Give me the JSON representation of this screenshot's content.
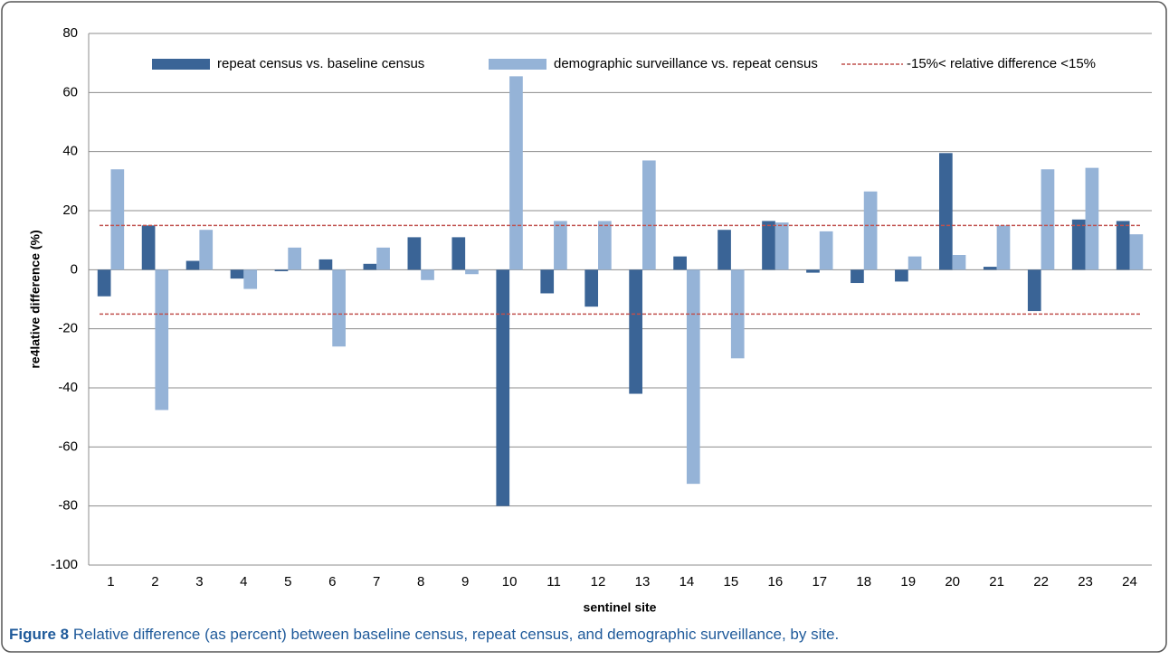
{
  "chart_data": {
    "type": "bar",
    "y_label": "re4lative difference (%)",
    "x_label": "sentinel site",
    "categories": [
      "1",
      "2",
      "3",
      "4",
      "5",
      "6",
      "7",
      "8",
      "9",
      "10",
      "11",
      "12",
      "13",
      "14",
      "15",
      "16",
      "17",
      "18",
      "19",
      "20",
      "21",
      "22",
      "23",
      "24"
    ],
    "series": [
      {
        "name": "repeat census vs. baseline census",
        "color": "#3a6496",
        "values": [
          -9,
          15,
          3,
          -3,
          -0.5,
          3.5,
          2,
          11,
          11,
          -80,
          -8,
          -12.5,
          -42,
          4.5,
          13.5,
          16.5,
          -1,
          -4.5,
          -4,
          39.5,
          1,
          -14,
          17,
          16.5
        ]
      },
      {
        "name": "demographic surveillance vs. repeat census",
        "color": "#95b3d7",
        "values": [
          34,
          -47.5,
          13.5,
          -6.5,
          7.5,
          -26,
          7.5,
          -3.5,
          -1.5,
          65.5,
          16.5,
          16.5,
          37,
          -72.5,
          -30,
          16,
          13,
          26.5,
          4.5,
          5,
          15,
          34,
          34.5,
          12
        ]
      }
    ],
    "reference_lines": {
      "name": "-15%< relative difference <15%",
      "color": "#c0504d",
      "values": [
        -15,
        15
      ]
    },
    "ylim": [
      -100,
      80
    ],
    "yticks": [
      -100,
      -80,
      -60,
      -40,
      -20,
      0,
      20,
      40,
      60,
      80
    ],
    "grid": true
  },
  "caption": {
    "label": "Figure 8",
    "text": "Relative difference (as percent) between baseline census, repeat census, and demographic surveillance, by site."
  }
}
